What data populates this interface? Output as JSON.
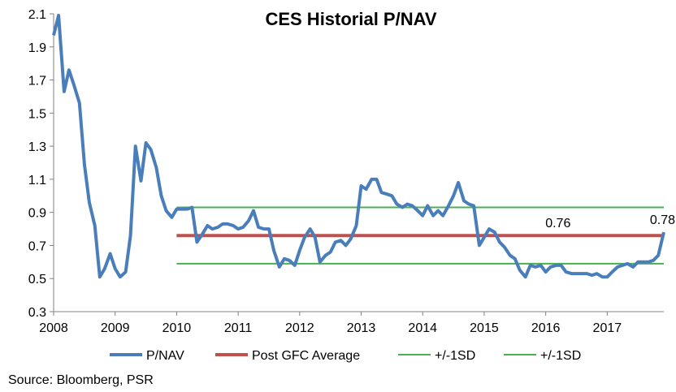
{
  "chart_data": {
    "type": "line",
    "title": "CES Historial P/NAV",
    "source": "Source: Bloomberg, PSR",
    "xlabel": "",
    "ylabel": "",
    "xlim": [
      2008,
      2017.92
    ],
    "ylim": [
      0.3,
      2.1
    ],
    "x_ticks": [
      "2008",
      "2009",
      "2010",
      "2011",
      "2012",
      "2013",
      "2014",
      "2015",
      "2016",
      "2017"
    ],
    "y_ticks": [
      "0.3",
      "0.5",
      "0.7",
      "0.9",
      "1.1",
      "1.3",
      "1.5",
      "1.7",
      "1.9",
      "2.1"
    ],
    "grid": false,
    "legend_position": "bottom",
    "annotations": [
      {
        "text": "0.76",
        "x": 2016.2,
        "y": 0.76
      },
      {
        "text": "0.78",
        "x": 2017.9,
        "y": 0.78
      }
    ],
    "series": [
      {
        "name": "P/NAV",
        "color": "#4a7ebb",
        "x": [
          2008.0,
          2008.08,
          2008.17,
          2008.25,
          2008.33,
          2008.42,
          2008.5,
          2008.58,
          2008.67,
          2008.75,
          2008.83,
          2008.92,
          2009.0,
          2009.08,
          2009.17,
          2009.25,
          2009.33,
          2009.42,
          2009.5,
          2009.58,
          2009.67,
          2009.75,
          2009.83,
          2009.92,
          2010.0,
          2010.08,
          2010.17,
          2010.25,
          2010.33,
          2010.42,
          2010.5,
          2010.58,
          2010.67,
          2010.75,
          2010.83,
          2010.92,
          2011.0,
          2011.08,
          2011.17,
          2011.25,
          2011.33,
          2011.42,
          2011.5,
          2011.58,
          2011.67,
          2011.75,
          2011.83,
          2011.92,
          2012.0,
          2012.08,
          2012.17,
          2012.25,
          2012.33,
          2012.42,
          2012.5,
          2012.58,
          2012.67,
          2012.75,
          2012.83,
          2012.92,
          2013.0,
          2013.08,
          2013.17,
          2013.25,
          2013.33,
          2013.42,
          2013.5,
          2013.58,
          2013.67,
          2013.75,
          2013.83,
          2013.92,
          2014.0,
          2014.08,
          2014.17,
          2014.25,
          2014.33,
          2014.42,
          2014.5,
          2014.58,
          2014.67,
          2014.75,
          2014.83,
          2014.92,
          2015.0,
          2015.08,
          2015.17,
          2015.25,
          2015.33,
          2015.42,
          2015.5,
          2015.58,
          2015.67,
          2015.75,
          2015.83,
          2015.92,
          2016.0,
          2016.08,
          2016.17,
          2016.25,
          2016.33,
          2016.42,
          2016.5,
          2016.58,
          2016.67,
          2016.75,
          2016.83,
          2016.92,
          2017.0,
          2017.08,
          2017.17,
          2017.25,
          2017.33,
          2017.42,
          2017.5,
          2017.58,
          2017.67,
          2017.75,
          2017.83,
          2017.92
        ],
        "values": [
          1.97,
          2.09,
          1.63,
          1.76,
          1.67,
          1.56,
          1.19,
          0.96,
          0.82,
          0.51,
          0.56,
          0.65,
          0.56,
          0.51,
          0.54,
          0.76,
          1.3,
          1.09,
          1.32,
          1.28,
          1.17,
          1.0,
          0.91,
          0.87,
          0.92,
          0.92,
          0.92,
          0.93,
          0.72,
          0.77,
          0.82,
          0.8,
          0.81,
          0.83,
          0.83,
          0.82,
          0.8,
          0.81,
          0.85,
          0.91,
          0.81,
          0.8,
          0.8,
          0.67,
          0.57,
          0.62,
          0.61,
          0.58,
          0.67,
          0.75,
          0.8,
          0.75,
          0.6,
          0.64,
          0.66,
          0.72,
          0.73,
          0.7,
          0.74,
          0.82,
          1.06,
          1.04,
          1.1,
          1.1,
          1.02,
          1.01,
          1.0,
          0.95,
          0.93,
          0.95,
          0.94,
          0.91,
          0.88,
          0.94,
          0.88,
          0.91,
          0.88,
          0.94,
          1.0,
          1.08,
          0.97,
          0.95,
          0.94,
          0.7,
          0.75,
          0.8,
          0.78,
          0.72,
          0.69,
          0.64,
          0.62,
          0.55,
          0.51,
          0.58,
          0.57,
          0.58,
          0.54,
          0.57,
          0.58,
          0.58,
          0.54,
          0.53,
          0.53,
          0.53,
          0.53,
          0.52,
          0.53,
          0.51,
          0.51,
          0.54,
          0.57,
          0.58,
          0.59,
          0.57,
          0.6,
          0.6,
          0.6,
          0.61,
          0.64,
          0.78
        ]
      },
      {
        "name": "Post GFC Average",
        "color": "#c0504d",
        "x": [
          2010.0,
          2017.92
        ],
        "values": [
          0.76,
          0.76
        ]
      },
      {
        "name": "+/-1SD",
        "color": "#4caf50",
        "x": [
          2010.0,
          2017.92
        ],
        "values": [
          0.93,
          0.93
        ]
      },
      {
        "name": "+/-1SD",
        "color": "#4caf50",
        "x": [
          2010.0,
          2017.92
        ],
        "values": [
          0.59,
          0.59
        ]
      }
    ]
  }
}
